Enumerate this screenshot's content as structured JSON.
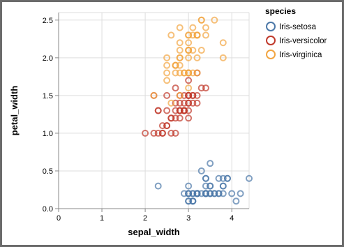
{
  "chart_data": {
    "type": "scatter",
    "xlabel": "sepal_width",
    "ylabel": "petal_width",
    "xlim": [
      0,
      4.4
    ],
    "ylim": [
      0,
      2.6
    ],
    "x_ticks": [
      0,
      1,
      2,
      3,
      4
    ],
    "y_ticks": [
      0,
      0.5,
      1,
      1.5,
      2,
      2.5
    ],
    "x_tick_labels": [
      "0",
      "1",
      "2",
      "3",
      "4"
    ],
    "y_tick_labels": [
      "0.0",
      "0.5",
      "1.0",
      "1.5",
      "2.0",
      "2.5"
    ],
    "grid": true,
    "legend": {
      "title": "species",
      "position": "right"
    },
    "series": [
      {
        "name": "Iris-setosa",
        "color": "#4c78a8",
        "points": [
          [
            3.5,
            0.2
          ],
          [
            3.0,
            0.2
          ],
          [
            3.2,
            0.2
          ],
          [
            3.1,
            0.2
          ],
          [
            3.6,
            0.2
          ],
          [
            3.9,
            0.4
          ],
          [
            3.4,
            0.3
          ],
          [
            3.4,
            0.2
          ],
          [
            2.9,
            0.2
          ],
          [
            3.1,
            0.1
          ],
          [
            3.7,
            0.2
          ],
          [
            3.4,
            0.2
          ],
          [
            3.0,
            0.1
          ],
          [
            3.0,
            0.1
          ],
          [
            4.0,
            0.2
          ],
          [
            4.4,
            0.4
          ],
          [
            3.9,
            0.4
          ],
          [
            3.5,
            0.3
          ],
          [
            3.8,
            0.3
          ],
          [
            3.8,
            0.3
          ],
          [
            3.4,
            0.2
          ],
          [
            3.7,
            0.4
          ],
          [
            3.6,
            0.2
          ],
          [
            3.3,
            0.5
          ],
          [
            3.4,
            0.2
          ],
          [
            3.0,
            0.2
          ],
          [
            3.4,
            0.4
          ],
          [
            3.5,
            0.2
          ],
          [
            3.4,
            0.2
          ],
          [
            3.2,
            0.2
          ],
          [
            3.1,
            0.2
          ],
          [
            3.4,
            0.4
          ],
          [
            4.1,
            0.1
          ],
          [
            4.2,
            0.2
          ],
          [
            3.1,
            0.1
          ],
          [
            3.2,
            0.2
          ],
          [
            3.5,
            0.2
          ],
          [
            3.1,
            0.1
          ],
          [
            3.0,
            0.2
          ],
          [
            3.4,
            0.2
          ],
          [
            3.5,
            0.3
          ],
          [
            2.3,
            0.3
          ],
          [
            3.2,
            0.2
          ],
          [
            3.5,
            0.6
          ],
          [
            3.8,
            0.4
          ],
          [
            3.0,
            0.3
          ],
          [
            3.8,
            0.2
          ],
          [
            3.2,
            0.2
          ],
          [
            3.7,
            0.2
          ],
          [
            3.3,
            0.2
          ]
        ]
      },
      {
        "name": "Iris-versicolor",
        "color": "#c0392b",
        "points": [
          [
            3.2,
            1.4
          ],
          [
            3.2,
            1.5
          ],
          [
            3.1,
            1.5
          ],
          [
            2.3,
            1.3
          ],
          [
            2.8,
            1.5
          ],
          [
            2.8,
            1.3
          ],
          [
            3.3,
            1.6
          ],
          [
            2.4,
            1.0
          ],
          [
            2.9,
            1.3
          ],
          [
            2.7,
            1.4
          ],
          [
            2.0,
            1.0
          ],
          [
            3.0,
            1.5
          ],
          [
            2.2,
            1.0
          ],
          [
            2.9,
            1.4
          ],
          [
            2.9,
            1.3
          ],
          [
            3.1,
            1.4
          ],
          [
            3.0,
            1.5
          ],
          [
            2.7,
            1.0
          ],
          [
            2.2,
            1.5
          ],
          [
            2.5,
            1.1
          ],
          [
            3.2,
            1.8
          ],
          [
            2.8,
            1.3
          ],
          [
            2.5,
            1.5
          ],
          [
            2.8,
            1.2
          ],
          [
            2.9,
            1.3
          ],
          [
            3.0,
            1.4
          ],
          [
            2.8,
            1.4
          ],
          [
            3.0,
            1.7
          ],
          [
            2.9,
            1.5
          ],
          [
            2.6,
            1.0
          ],
          [
            2.4,
            1.1
          ],
          [
            2.4,
            1.0
          ],
          [
            2.7,
            1.2
          ],
          [
            2.7,
            1.6
          ],
          [
            3.0,
            1.5
          ],
          [
            3.4,
            1.6
          ],
          [
            3.1,
            1.5
          ],
          [
            2.3,
            1.3
          ],
          [
            3.0,
            1.3
          ],
          [
            2.5,
            1.3
          ],
          [
            2.6,
            1.2
          ],
          [
            3.0,
            1.4
          ],
          [
            2.6,
            1.2
          ],
          [
            2.3,
            1.0
          ],
          [
            2.7,
            1.3
          ],
          [
            3.0,
            1.2
          ],
          [
            2.9,
            1.3
          ],
          [
            2.9,
            1.3
          ],
          [
            2.5,
            1.1
          ],
          [
            2.8,
            1.3
          ]
        ]
      },
      {
        "name": "Iris-virginica",
        "color": "#f2a541",
        "points": [
          [
            3.3,
            2.5
          ],
          [
            2.7,
            1.9
          ],
          [
            3.0,
            2.1
          ],
          [
            2.9,
            1.8
          ],
          [
            3.0,
            2.2
          ],
          [
            3.0,
            2.1
          ],
          [
            2.5,
            1.7
          ],
          [
            2.9,
            1.8
          ],
          [
            2.5,
            1.8
          ],
          [
            3.6,
            2.5
          ],
          [
            3.2,
            2.0
          ],
          [
            2.7,
            1.9
          ],
          [
            3.0,
            2.1
          ],
          [
            2.5,
            2.0
          ],
          [
            2.8,
            2.4
          ],
          [
            3.2,
            2.3
          ],
          [
            3.0,
            1.8
          ],
          [
            3.8,
            2.2
          ],
          [
            2.6,
            2.3
          ],
          [
            2.2,
            1.5
          ],
          [
            3.2,
            2.3
          ],
          [
            2.8,
            2.0
          ],
          [
            2.8,
            2.0
          ],
          [
            2.7,
            1.8
          ],
          [
            3.3,
            2.1
          ],
          [
            3.2,
            1.8
          ],
          [
            2.8,
            1.8
          ],
          [
            3.0,
            1.8
          ],
          [
            2.8,
            2.1
          ],
          [
            3.0,
            1.6
          ],
          [
            2.8,
            1.9
          ],
          [
            3.8,
            2.0
          ],
          [
            2.8,
            2.2
          ],
          [
            2.8,
            1.5
          ],
          [
            2.6,
            1.4
          ],
          [
            3.0,
            2.3
          ],
          [
            3.4,
            2.4
          ],
          [
            3.1,
            1.8
          ],
          [
            3.0,
            1.8
          ],
          [
            3.1,
            2.1
          ],
          [
            3.1,
            2.4
          ],
          [
            3.1,
            2.3
          ],
          [
            2.7,
            1.9
          ],
          [
            3.2,
            2.3
          ],
          [
            3.3,
            2.5
          ],
          [
            3.0,
            2.3
          ],
          [
            2.5,
            1.9
          ],
          [
            3.0,
            2.0
          ],
          [
            3.4,
            2.3
          ],
          [
            3.0,
            1.8
          ]
        ]
      }
    ]
  }
}
